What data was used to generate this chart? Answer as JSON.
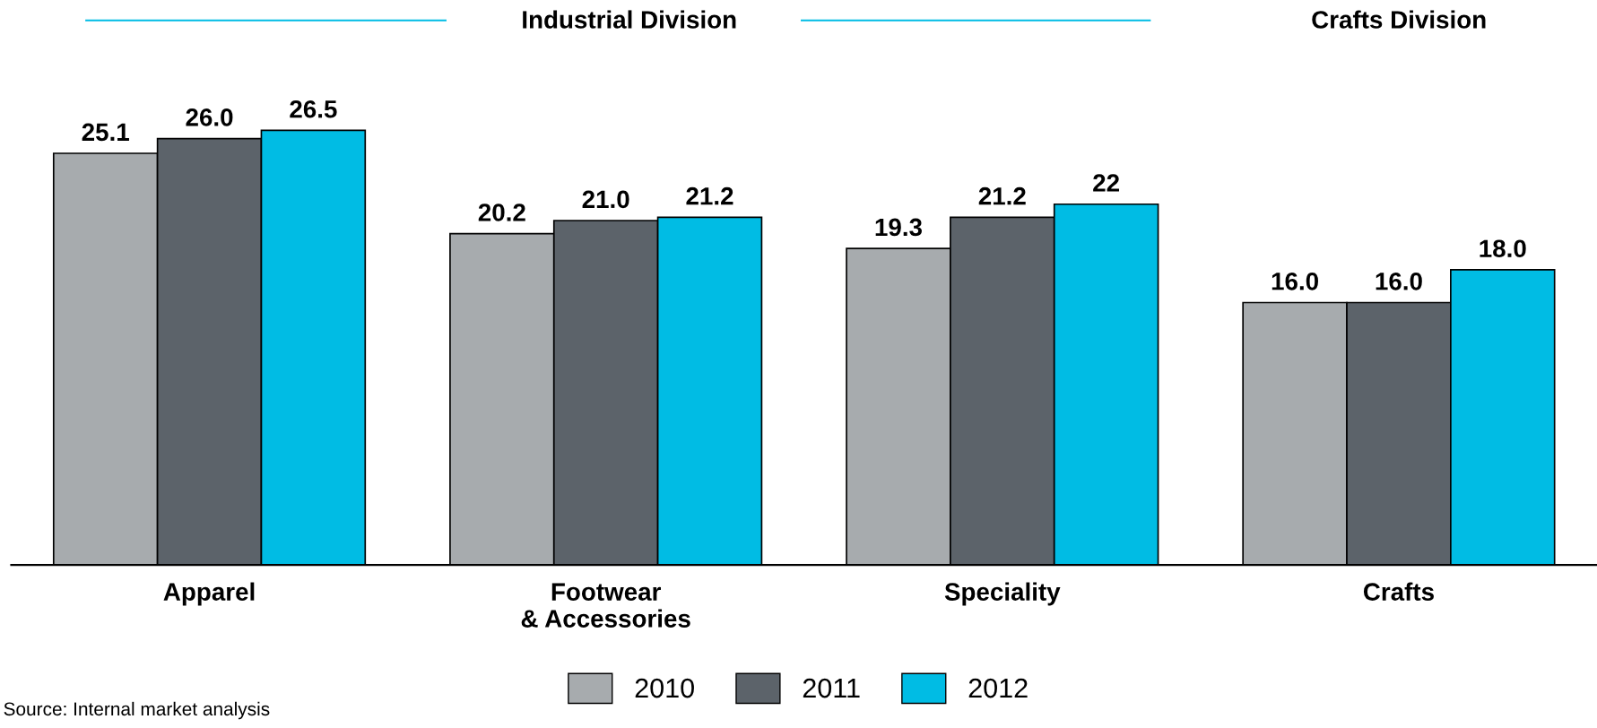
{
  "chart_data": {
    "type": "bar",
    "categories": [
      "Apparel",
      "Footwear\n& Accessories",
      "Speciality",
      "Crafts"
    ],
    "series": [
      {
        "name": "2010",
        "color": "#a7abae",
        "values": [
          25.1,
          20.2,
          19.3,
          16.0
        ],
        "value_labels": [
          "25.1",
          "20.2",
          "19.3",
          "16.0"
        ]
      },
      {
        "name": "2011",
        "color": "#5c636a",
        "values": [
          26.0,
          21.0,
          21.2,
          16.0
        ],
        "value_labels": [
          "26.0",
          "21.0",
          "21.2",
          "16.0"
        ]
      },
      {
        "name": "2012",
        "color": "#00bce4",
        "values": [
          26.5,
          21.2,
          22,
          18.0
        ],
        "value_labels": [
          "26.5",
          "21.2",
          "22",
          "18.0"
        ]
      }
    ],
    "annotations": [
      "Industrial Division",
      "Crafts Division",
      "Source: Internal market analysis"
    ],
    "legend": "bottom",
    "grid": false
  }
}
